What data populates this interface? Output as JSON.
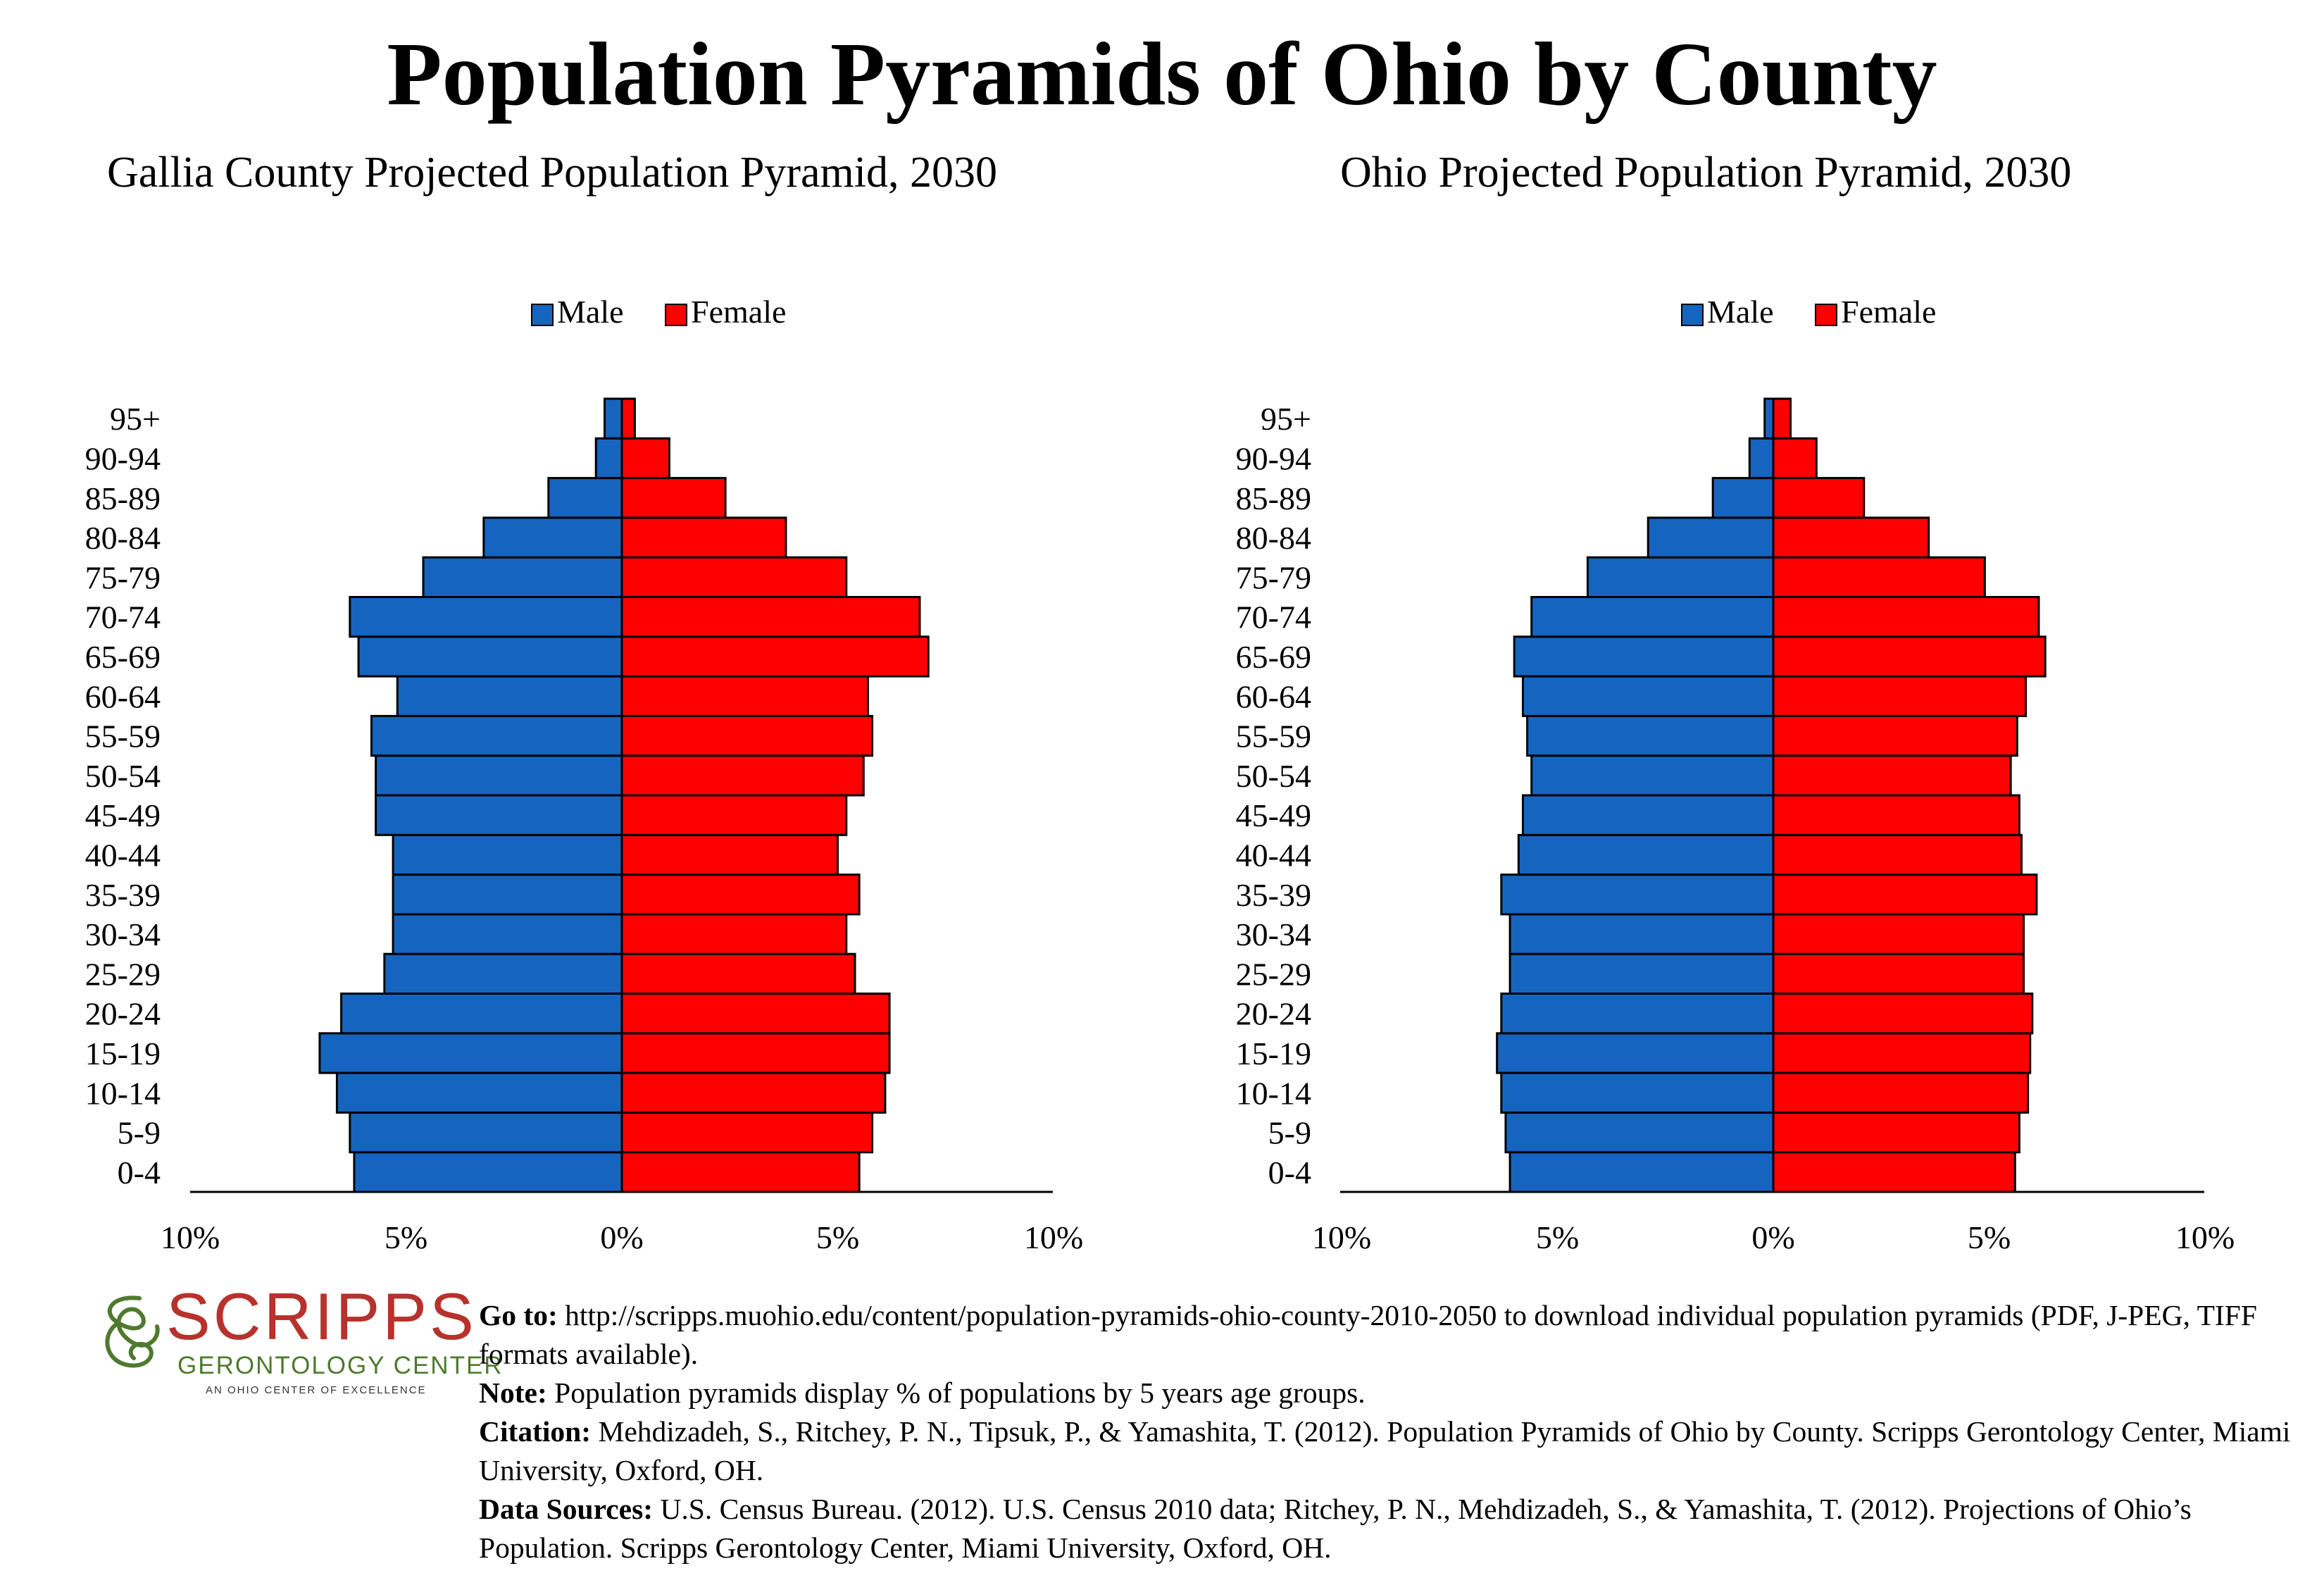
{
  "title": "Population Pyramids of Ohio by County",
  "chart_data": [
    {
      "type": "bar",
      "orientation": "horizontal-pyramid",
      "title": "Gallia County Projected Population Pyramid, 2030",
      "categories": [
        "0-4",
        "5-9",
        "10-14",
        "15-19",
        "20-24",
        "25-29",
        "30-34",
        "35-39",
        "40-44",
        "45-49",
        "50-54",
        "55-59",
        "60-64",
        "65-69",
        "70-74",
        "75-79",
        "80-84",
        "85-89",
        "90-94",
        "95+"
      ],
      "series": [
        {
          "name": "Male",
          "color": "#1565c0",
          "values": [
            6.2,
            6.3,
            6.6,
            7.0,
            6.5,
            5.5,
            5.3,
            5.3,
            5.3,
            5.7,
            5.7,
            5.8,
            5.2,
            6.1,
            6.3,
            4.6,
            3.2,
            1.7,
            0.6,
            0.4
          ]
        },
        {
          "name": "Female",
          "color": "#ff0000",
          "values": [
            5.5,
            5.8,
            6.1,
            6.2,
            6.2,
            5.4,
            5.2,
            5.5,
            5.0,
            5.2,
            5.6,
            5.8,
            5.7,
            7.1,
            6.9,
            5.2,
            3.8,
            2.4,
            1.1,
            0.3
          ]
        }
      ],
      "xlim": [
        -10,
        10
      ],
      "xticks": [
        "10%",
        "5%",
        "0%",
        "5%",
        "10%"
      ],
      "legend": "top-center"
    },
    {
      "type": "bar",
      "orientation": "horizontal-pyramid",
      "title": "Ohio Projected Population Pyramid, 2030",
      "categories": [
        "0-4",
        "5-9",
        "10-14",
        "15-19",
        "20-24",
        "25-29",
        "30-34",
        "35-39",
        "40-44",
        "45-49",
        "50-54",
        "55-59",
        "60-64",
        "65-69",
        "70-74",
        "75-79",
        "80-84",
        "85-89",
        "90-94",
        "95+"
      ],
      "series": [
        {
          "name": "Male",
          "color": "#1565c0",
          "values": [
            6.1,
            6.2,
            6.3,
            6.4,
            6.3,
            6.1,
            6.1,
            6.3,
            5.9,
            5.8,
            5.6,
            5.7,
            5.8,
            6.0,
            5.6,
            4.3,
            2.9,
            1.4,
            0.55,
            0.2
          ]
        },
        {
          "name": "Female",
          "color": "#ff0000",
          "values": [
            5.6,
            5.7,
            5.9,
            5.95,
            6.0,
            5.8,
            5.8,
            6.1,
            5.75,
            5.7,
            5.5,
            5.65,
            5.85,
            6.3,
            6.15,
            4.9,
            3.6,
            2.1,
            1.0,
            0.4
          ]
        }
      ],
      "xlim": [
        -10,
        10
      ],
      "xticks": [
        "10%",
        "5%",
        "0%",
        "5%",
        "10%"
      ],
      "legend": "top-center"
    }
  ],
  "logo": {
    "name": "SCRIPPS",
    "subtitle": "GERONTOLOGY CENTER",
    "tagline": "AN OHIO CENTER OF EXCELLENCE",
    "colors": {
      "name": "#b7322c",
      "subtitle": "#4e7a2e"
    }
  },
  "notes": {
    "goto_label": "Go to:",
    "goto_text": " http://scripps.muohio.edu/content/population-pyramids-ohio-county-2010-2050 to download individual population pyramids (PDF, J-PEG, TIFF formats available).",
    "note_label": "Note:",
    "note_text": " Population pyramids display % of populations by 5 years age groups.",
    "citation_label": "Citation:",
    "citation_text": " Mehdizadeh, S., Ritchey, P. N., Tipsuk, P., & Yamashita, T. (2012). Population Pyramids of Ohio by County. Scripps Gerontology Center, Miami University, Oxford, OH.",
    "sources_label": "Data Sources:",
    "sources_text": " U.S. Census Bureau. (2012). U.S. Census 2010 data; Ritchey, P. N., Mehdizadeh, S., & Yamashita, T. (2012). Projections of Ohio’s Population. Scripps Gerontology Center, Miami University, Oxford, OH."
  }
}
